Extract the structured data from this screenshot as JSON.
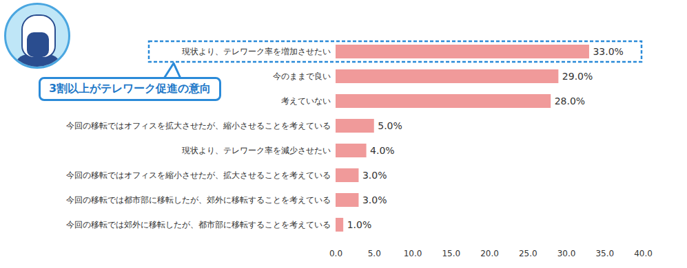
{
  "chart_data": {
    "type": "bar",
    "orientation": "horizontal",
    "categories": [
      "現状より、テレワーク率を増加させたい",
      "今のままで良い",
      "考えていない",
      "今回の移転ではオフィスを拡大させたが、縮小させることを考えている",
      "現状より、テレワーク率を減少させたい",
      "今回の移転ではオフィスを縮小させたが、拡大させることを考えている",
      "今回の移転では都市部に移転したが、郊外に移転することを考えている",
      "今回の移転では郊外に移転したが、都市部に移転することを考えている"
    ],
    "values": [
      33.0,
      29.0,
      28.0,
      5.0,
      4.0,
      3.0,
      3.0,
      1.0
    ],
    "value_labels": [
      "33.0%",
      "29.0%",
      "28.0%",
      "5.0%",
      "4.0%",
      "3.0%",
      "3.0%",
      "1.0%"
    ],
    "data_labels": true,
    "color": "#f09a9a",
    "xlim": [
      0,
      40
    ],
    "xticks": [
      {
        "value": 0,
        "label": "0.0"
      },
      {
        "value": 5,
        "label": "5.0"
      },
      {
        "value": 10,
        "label": "10.0"
      },
      {
        "value": 15,
        "label": "15.0"
      },
      {
        "value": 20,
        "label": "20.0"
      },
      {
        "value": 25,
        "label": "25.0"
      },
      {
        "value": 30,
        "label": "30.0"
      },
      {
        "value": 35,
        "label": "35.0"
      },
      {
        "value": 40,
        "label": "40.0"
      }
    ],
    "grid": false,
    "annotation": "3割以上がテレワーク促進の意向"
  }
}
